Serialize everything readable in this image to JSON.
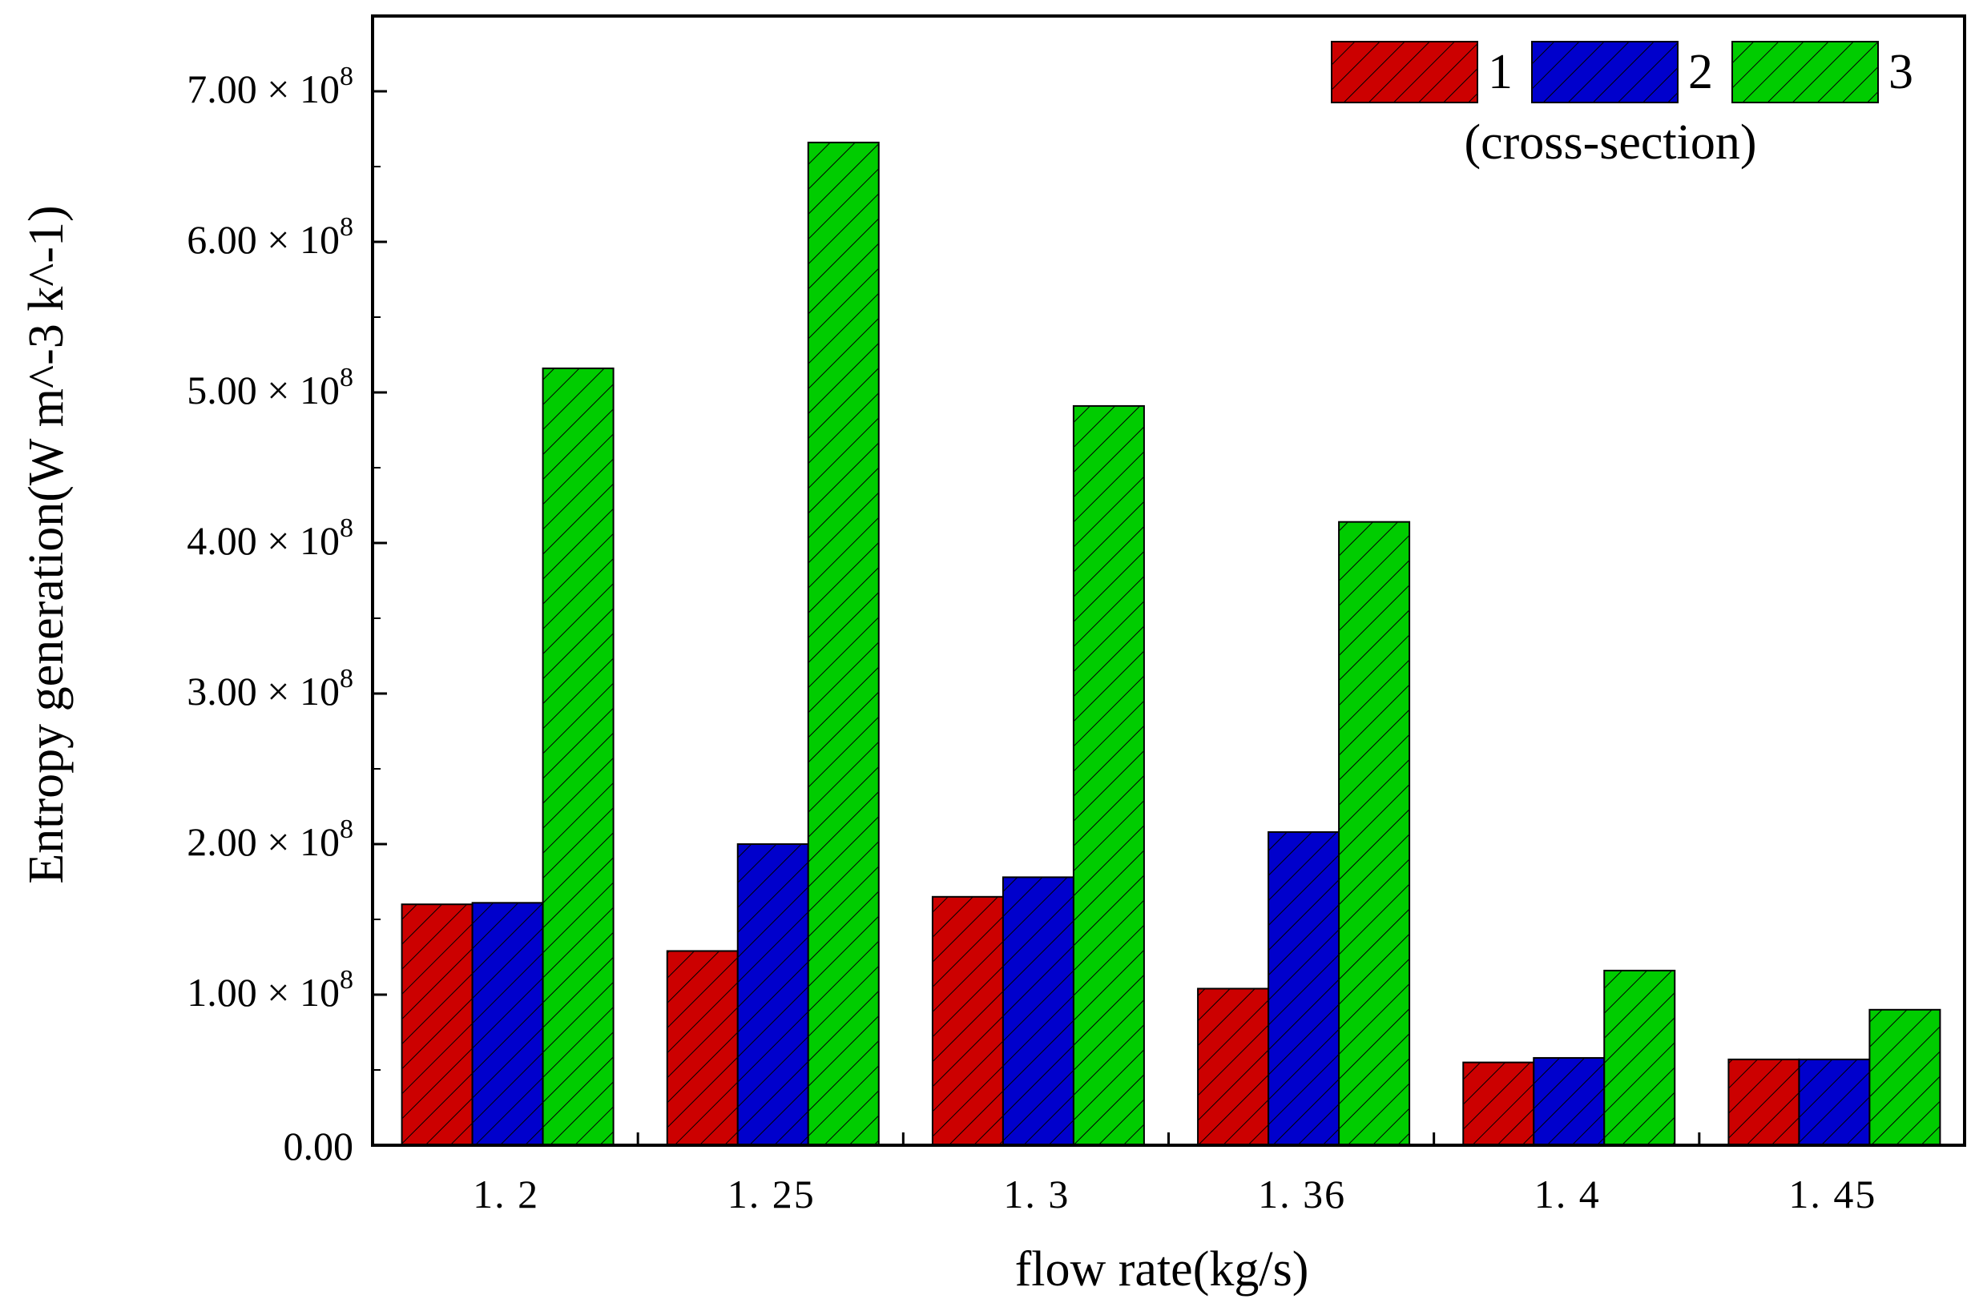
{
  "chart_data": {
    "type": "bar",
    "title": "",
    "xlabel": "flow rate(kg/s)",
    "ylabel": "Entropy generation(W m^-3 k^-1)",
    "categories": [
      "1. 2",
      "1. 25",
      "1. 3",
      "1. 36",
      "1. 4",
      "1. 45"
    ],
    "series": [
      {
        "name": "1",
        "color": "#cc0000",
        "values": [
          160000000,
          129000000,
          165000000,
          104000000,
          55000000,
          57000000
        ]
      },
      {
        "name": "2",
        "color": "#0000cc",
        "values": [
          161000000,
          200000000,
          178000000,
          208000000,
          58000000,
          57000000
        ]
      },
      {
        "name": "3",
        "color": "#00cc00",
        "values": [
          516000000,
          666000000,
          491000000,
          414000000,
          116000000,
          90000000
        ]
      }
    ],
    "ylim": [
      0,
      750000000
    ],
    "yticks": [
      {
        "value": 0,
        "mantissa": "0.00",
        "suffix": "",
        "exp": ""
      },
      {
        "value": 100000000,
        "mantissa": "1.00",
        "suffix": " × 10",
        "exp": "8"
      },
      {
        "value": 200000000,
        "mantissa": "2.00",
        "suffix": " × 10",
        "exp": "8"
      },
      {
        "value": 300000000,
        "mantissa": "3.00",
        "suffix": " × 10",
        "exp": "8"
      },
      {
        "value": 400000000,
        "mantissa": "4.00",
        "suffix": " × 10",
        "exp": "8"
      },
      {
        "value": 500000000,
        "mantissa": "5.00",
        "suffix": " × 10",
        "exp": "8"
      },
      {
        "value": 600000000,
        "mantissa": "6.00",
        "suffix": " × 10",
        "exp": "8"
      },
      {
        "value": 700000000,
        "mantissa": "7.00",
        "suffix": " × 10",
        "exp": "8"
      }
    ],
    "legend": {
      "position": "top-right",
      "subtitle": "(cross-section)"
    },
    "pattern": "diagonal-hatch",
    "grid": false
  }
}
